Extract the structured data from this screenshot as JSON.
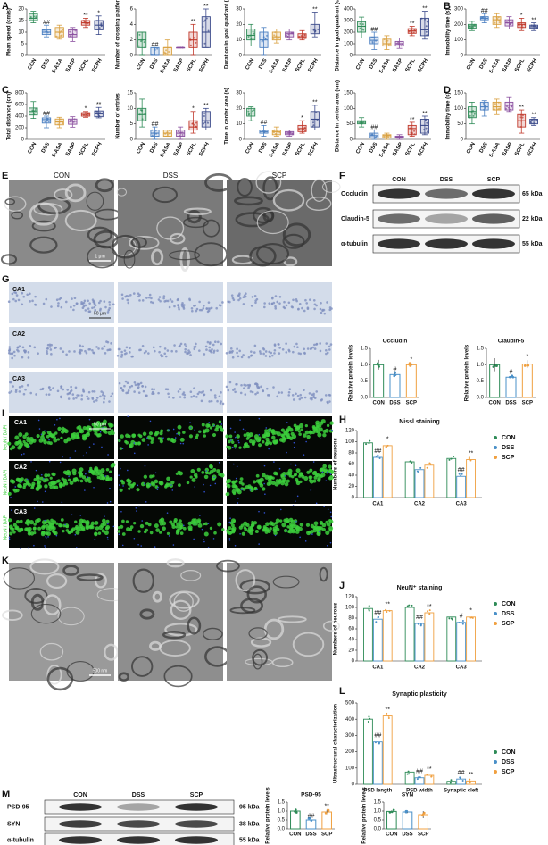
{
  "panel_labels": [
    "A",
    "B",
    "C",
    "D",
    "E",
    "F",
    "G",
    "H",
    "I",
    "J",
    "K",
    "L",
    "M"
  ],
  "tem": {
    "lanes": [
      "CON",
      "DSS",
      "SCP"
    ],
    "scale": "1 μm",
    "synapse_scale": "500 nm"
  },
  "nissl": {
    "regions": [
      "CA1",
      "CA2",
      "CA3"
    ],
    "scale": "50 μm"
  },
  "fluorescence": {
    "regions": [
      "CA1",
      "CA2",
      "CA3"
    ],
    "stain": "NeuN / DAPI",
    "scale": "50 μm"
  },
  "blot_F": {
    "lanes": [
      "CON",
      "DSS",
      "SCP"
    ],
    "rows": [
      {
        "name": "Occludin",
        "size": "65 kDa"
      },
      {
        "name": "Claudin-5",
        "size": "22 kDa"
      },
      {
        "name": "α-tubulin",
        "size": "55 kDa"
      }
    ]
  },
  "blot_M": {
    "lanes": [
      "CON",
      "DSS",
      "SCP"
    ],
    "rows": [
      {
        "name": "PSD-95",
        "size": "95 kDa"
      },
      {
        "name": "SYN",
        "size": "38 kDa"
      },
      {
        "name": "α-tubulin",
        "size": "55 kDa"
      }
    ]
  },
  "chart_data": [
    {
      "type": "box",
      "y_label": "Mean speed (cm/s)",
      "categories": [
        "CON",
        "DSS",
        "5-ASA",
        "SASP",
        "SCPL",
        "SCPH"
      ],
      "colors": [
        "#2e8b57",
        "#4a7fc1",
        "#d9a03f",
        "#8a4f9f",
        "#c0392b",
        "#3b4a8a"
      ],
      "values": [
        [
          14,
          15,
          16,
          18,
          19
        ],
        [
          8,
          9,
          10,
          11,
          13
        ],
        [
          7,
          8,
          10,
          12,
          13
        ],
        [
          6,
          8,
          9,
          11,
          12
        ],
        [
          12,
          13,
          14,
          15,
          16
        ],
        [
          9,
          11,
          13,
          15,
          17
        ]
      ],
      "annotations": [
        null,
        "##",
        null,
        null,
        "**",
        "*"
      ],
      "ylim": [
        0,
        20
      ],
      "yticks": [
        0,
        5,
        10,
        15,
        20
      ]
    },
    {
      "type": "box",
      "y_label": "Number of crossing platform",
      "categories": [
        "CON",
        "DSS",
        "5-ASA",
        "SASP",
        "SCPL",
        "SCPH"
      ],
      "colors": [
        "#2e8b57",
        "#4a7fc1",
        "#d9a03f",
        "#8a4f9f",
        "#c0392b",
        "#3b4a8a"
      ],
      "values": [
        [
          0,
          1,
          2,
          3,
          3
        ],
        [
          0,
          0,
          0,
          1,
          1
        ],
        [
          0,
          0,
          1,
          1,
          2
        ],
        [
          1,
          1,
          1,
          1,
          1
        ],
        [
          0,
          1,
          2,
          3,
          4
        ],
        [
          1,
          1,
          3,
          5,
          6
        ]
      ],
      "annotations": [
        null,
        "##",
        null,
        null,
        "**",
        "**"
      ],
      "ylim": [
        0,
        6
      ],
      "yticks": [
        0,
        2,
        4,
        6
      ]
    },
    {
      "type": "box",
      "y_label": "Duration in goal quadrant (s)",
      "categories": [
        "CON",
        "DSS",
        "5-ASA",
        "SASP",
        "SCPL",
        "SCPH"
      ],
      "colors": [
        "#2e8b57",
        "#4a7fc1",
        "#d9a03f",
        "#8a4f9f",
        "#c0392b",
        "#3b4a8a"
      ],
      "values": [
        [
          6,
          10,
          13,
          17,
          20
        ],
        [
          0,
          5,
          10,
          15,
          18
        ],
        [
          8,
          10,
          12,
          15,
          17
        ],
        [
          10,
          12,
          14,
          15,
          17
        ],
        [
          10,
          11,
          12,
          14,
          16
        ],
        [
          12,
          14,
          17,
          20,
          28
        ]
      ],
      "annotations": [
        null,
        null,
        null,
        null,
        null,
        "**"
      ],
      "ylim": [
        0,
        30
      ],
      "yticks": [
        0,
        10,
        20,
        30
      ]
    },
    {
      "type": "box",
      "y_label": "Distance in goal quadrant (cm)",
      "categories": [
        "CON",
        "DSS",
        "5-ASA",
        "SASP",
        "SCPL",
        "SCPH"
      ],
      "colors": [
        "#2e8b57",
        "#4a7fc1",
        "#d9a03f",
        "#8a4f9f",
        "#c0392b",
        "#3b4a8a"
      ],
      "values": [
        [
          150,
          200,
          250,
          290,
          330
        ],
        [
          50,
          100,
          130,
          160,
          200
        ],
        [
          50,
          80,
          100,
          140,
          170
        ],
        [
          60,
          80,
          100,
          120,
          150
        ],
        [
          170,
          190,
          210,
          230,
          250
        ],
        [
          140,
          170,
          220,
          320,
          380
        ]
      ],
      "annotations": [
        null,
        "##",
        null,
        null,
        "**",
        "**"
      ],
      "ylim": [
        0,
        400
      ],
      "yticks": [
        0,
        100,
        200,
        300,
        400
      ]
    },
    {
      "type": "box",
      "y_label": "Immobility time (s)",
      "categories": [
        "CON",
        "DSS",
        "5-ASA",
        "SASP",
        "SCPL",
        "SCPH"
      ],
      "colors": [
        "#2e8b57",
        "#4a7fc1",
        "#d9a03f",
        "#8a4f9f",
        "#c0392b",
        "#3b4a8a"
      ],
      "values": [
        [
          160,
          175,
          190,
          200,
          220
        ],
        [
          210,
          230,
          240,
          250,
          270
        ],
        [
          180,
          200,
          230,
          250,
          270
        ],
        [
          170,
          190,
          210,
          230,
          250
        ],
        [
          160,
          180,
          200,
          210,
          240
        ],
        [
          160,
          175,
          185,
          195,
          210
        ]
      ],
      "annotations": [
        null,
        "##",
        null,
        null,
        "*",
        "**"
      ],
      "ylim": [
        0,
        300
      ],
      "yticks": [
        0,
        100,
        200,
        300
      ]
    },
    {
      "type": "box",
      "y_label": "Total distance (cm)",
      "categories": [
        "CON",
        "DSS",
        "5-ASA",
        "SASP",
        "SCPL",
        "SCPH"
      ],
      "colors": [
        "#2e8b57",
        "#4a7fc1",
        "#d9a03f",
        "#8a4f9f",
        "#c0392b",
        "#3b4a8a"
      ],
      "values": [
        [
          360,
          420,
          480,
          540,
          650
        ],
        [
          200,
          280,
          340,
          370,
          400
        ],
        [
          200,
          250,
          300,
          350,
          380
        ],
        [
          210,
          260,
          310,
          350,
          390
        ],
        [
          380,
          400,
          430,
          460,
          480
        ],
        [
          370,
          390,
          440,
          490,
          550
        ]
      ],
      "annotations": [
        null,
        "##",
        null,
        null,
        "*",
        "**"
      ],
      "ylim": [
        0,
        800
      ],
      "yticks": [
        0,
        200,
        400,
        600,
        800
      ]
    },
    {
      "type": "box",
      "y_label": "Number of entries",
      "categories": [
        "CON",
        "DSS",
        "5-ASA",
        "SASP",
        "SCPL",
        "SCPH"
      ],
      "colors": [
        "#2e8b57",
        "#4a7fc1",
        "#d9a03f",
        "#8a4f9f",
        "#c0392b",
        "#3b4a8a"
      ],
      "values": [
        [
          4,
          6,
          8,
          10,
          13
        ],
        [
          0,
          1,
          2,
          3,
          4
        ],
        [
          1,
          1,
          2,
          3,
          3
        ],
        [
          0,
          1,
          2,
          3,
          4
        ],
        [
          2,
          3,
          4,
          6,
          9
        ],
        [
          3,
          4,
          6,
          9,
          10
        ]
      ],
      "annotations": [
        null,
        "##",
        null,
        null,
        "*",
        "**"
      ],
      "ylim": [
        0,
        15
      ],
      "yticks": [
        0,
        5,
        10,
        15
      ]
    },
    {
      "type": "box",
      "y_label": "Time in center area (s)",
      "categories": [
        "CON",
        "DSS",
        "5-ASA",
        "SASP",
        "SCPL",
        "SCPH"
      ],
      "colors": [
        "#2e8b57",
        "#4a7fc1",
        "#d9a03f",
        "#8a4f9f",
        "#c0392b",
        "#3b4a8a"
      ],
      "values": [
        [
          12,
          15,
          17,
          20,
          21
        ],
        [
          2,
          4,
          5,
          6,
          9
        ],
        [
          2,
          3,
          5,
          6,
          8
        ],
        [
          2,
          3,
          4,
          5,
          6
        ],
        [
          4,
          5,
          7,
          9,
          12
        ],
        [
          6,
          8,
          13,
          18,
          22
        ]
      ],
      "annotations": [
        null,
        "##",
        null,
        null,
        "*",
        "**"
      ],
      "ylim": [
        0,
        30
      ],
      "yticks": [
        0,
        10,
        20,
        30
      ]
    },
    {
      "type": "box",
      "y_label": "Distance in center area (cm)",
      "categories": [
        "CON",
        "DSS",
        "5-ASA",
        "SASP",
        "SCPL",
        "SCPH"
      ],
      "colors": [
        "#2e8b57",
        "#4a7fc1",
        "#d9a03f",
        "#8a4f9f",
        "#c0392b",
        "#3b4a8a"
      ],
      "values": [
        [
          40,
          50,
          55,
          60,
          70
        ],
        [
          0,
          5,
          12,
          20,
          30
        ],
        [
          0,
          5,
          12,
          15,
          20
        ],
        [
          0,
          5,
          8,
          10,
          15
        ],
        [
          10,
          15,
          35,
          45,
          55
        ],
        [
          15,
          20,
          45,
          65,
          75
        ]
      ],
      "annotations": [
        null,
        "##",
        null,
        null,
        "**",
        "**"
      ],
      "ylim": [
        0,
        150
      ],
      "yticks": [
        0,
        50,
        100,
        150
      ]
    },
    {
      "type": "box",
      "y_label": "Immobility time (s)",
      "categories": [
        "CON",
        "DSS",
        "5-ASA",
        "SASP",
        "SCPL",
        "SCPH"
      ],
      "colors": [
        "#2e8b57",
        "#4a7fc1",
        "#d9a03f",
        "#8a4f9f",
        "#c0392b",
        "#3b4a8a"
      ],
      "values": [
        [
          50,
          70,
          90,
          105,
          120
        ],
        [
          75,
          95,
          105,
          120,
          125
        ],
        [
          80,
          95,
          105,
          120,
          130
        ],
        [
          90,
          95,
          110,
          120,
          135
        ],
        [
          20,
          40,
          60,
          80,
          95
        ],
        [
          45,
          50,
          60,
          65,
          70
        ]
      ],
      "annotations": [
        null,
        null,
        null,
        null,
        "**",
        "**"
      ],
      "ylim": [
        0,
        150
      ],
      "yticks": [
        0,
        50,
        100,
        150
      ]
    },
    {
      "type": "bar",
      "title": "Occludin",
      "y_label": "Relative protein levels",
      "categories": [
        "CON",
        "DSS",
        "SCP"
      ],
      "colors": [
        "#2e8b57",
        "#4a90c8",
        "#f0a040"
      ],
      "values": [
        1.0,
        0.7,
        1.0
      ],
      "errors": [
        0.15,
        0.05,
        0.05
      ],
      "annotations": [
        null,
        "#",
        "*"
      ],
      "ylim": [
        0,
        1.5
      ],
      "yticks": [
        {
          "value": 0,
          "label": "0.0"
        },
        {
          "value": 0.5,
          "label": "0.5"
        },
        {
          "value": 1,
          "label": "1.0"
        },
        {
          "value": 1.5,
          "label": "1.5"
        }
      ]
    },
    {
      "type": "bar",
      "title": "Claudin-5",
      "y_label": "Relative protein levels",
      "categories": [
        "CON",
        "DSS",
        "SCP"
      ],
      "colors": [
        "#2e8b57",
        "#4a90c8",
        "#f0a040"
      ],
      "values": [
        1.0,
        0.62,
        1.02
      ],
      "errors": [
        0.2,
        0.05,
        0.12
      ],
      "annotations": [
        null,
        "#",
        "*"
      ],
      "ylim": [
        0,
        1.5
      ],
      "yticks": [
        {
          "value": 0,
          "label": "0.0"
        },
        {
          "value": 0.5,
          "label": "0.5"
        },
        {
          "value": 1,
          "label": "1.0"
        },
        {
          "value": 1.5,
          "label": "1.5"
        }
      ]
    },
    {
      "type": "bar",
      "title": "Nissl staining",
      "y_label": "Numbers of neurons",
      "categories": [
        "CA1",
        "CA2",
        "CA3"
      ],
      "series": [
        {
          "name": "CON",
          "color": "#2e8b57",
          "values": [
            98,
            64,
            70
          ],
          "annotations": [
            null,
            null,
            null
          ]
        },
        {
          "name": "DSS",
          "color": "#4a90c8",
          "values": [
            72,
            50,
            38
          ],
          "annotations": [
            "##",
            null,
            "##"
          ]
        },
        {
          "name": "SCP",
          "color": "#f0a040",
          "values": [
            93,
            58,
            68
          ],
          "annotations": [
            "*",
            null,
            "**"
          ]
        }
      ],
      "ylim": [
        0,
        120
      ],
      "yticks": [
        0,
        20,
        40,
        60,
        80,
        100,
        120
      ]
    },
    {
      "type": "bar",
      "title": "NeuN⁺ staining",
      "y_label": "Numbers of neurons",
      "categories": [
        "CA1",
        "CA2",
        "CA3"
      ],
      "series": [
        {
          "name": "CON",
          "color": "#2e8b57",
          "values": [
            98,
            100,
            82
          ],
          "annotations": [
            null,
            null,
            null
          ]
        },
        {
          "name": "DSS",
          "color": "#4a90c8",
          "values": [
            78,
            70,
            72
          ],
          "annotations": [
            "##",
            "##",
            "#"
          ]
        },
        {
          "name": "SCP",
          "color": "#f0a040",
          "values": [
            94,
            90,
            82
          ],
          "annotations": [
            "**",
            "**",
            "*"
          ]
        }
      ],
      "ylim": [
        0,
        120
      ],
      "yticks": [
        0,
        20,
        40,
        60,
        80,
        100,
        120
      ]
    },
    {
      "type": "bar",
      "title": "Synaptic plasticity",
      "y_label": "Ultrastructural characterization",
      "categories": [
        "PSD length",
        "PSD width",
        "Synaptic cleft"
      ],
      "series": [
        {
          "name": "CON",
          "color": "#2e8b57",
          "values": [
            400,
            75,
            18
          ],
          "annotations": [
            null,
            null,
            null
          ]
        },
        {
          "name": "DSS",
          "color": "#4a90c8",
          "values": [
            260,
            40,
            32
          ],
          "annotations": [
            "##",
            "##",
            "##"
          ]
        },
        {
          "name": "SCP",
          "color": "#f0a040",
          "values": [
            420,
            55,
            20
          ],
          "annotations": [
            "**",
            "**",
            "**"
          ]
        }
      ],
      "ylim": [
        0,
        500
      ],
      "yticks": [
        0,
        100,
        200,
        300,
        400,
        500
      ]
    },
    {
      "type": "bar",
      "title": "PSD-95",
      "y_label": "Relative protein levels",
      "categories": [
        "CON",
        "DSS",
        "SCP"
      ],
      "colors": [
        "#2e8b57",
        "#4a90c8",
        "#f0a040"
      ],
      "values": [
        1.0,
        0.5,
        0.95
      ],
      "errors": [
        0.06,
        0.02,
        0.12
      ],
      "annotations": [
        null,
        "##",
        "**"
      ],
      "ylim": [
        0,
        1.5
      ],
      "yticks": [
        {
          "value": 0,
          "label": "0.0"
        },
        {
          "value": 0.5,
          "label": "0.5"
        },
        {
          "value": 1,
          "label": "1.0"
        },
        {
          "value": 1.5,
          "label": "1.5"
        }
      ]
    },
    {
      "type": "bar",
      "title": "SYN",
      "y_label": "Relative protein levels",
      "categories": [
        "CON",
        "DSS",
        "SCP"
      ],
      "colors": [
        "#2e8b57",
        "#4a90c8",
        "#f0a040"
      ],
      "values": [
        0.98,
        0.95,
        0.8
      ],
      "errors": [
        0.06,
        0.06,
        0.2
      ],
      "annotations": [
        null,
        null,
        null
      ],
      "ylim": [
        0,
        1.5
      ],
      "yticks": [
        {
          "value": 0,
          "label": "0.0"
        },
        {
          "value": 0.5,
          "label": "0.5"
        },
        {
          "value": 1,
          "label": "1.0"
        },
        {
          "value": 1.5,
          "label": "1.5"
        }
      ]
    }
  ]
}
